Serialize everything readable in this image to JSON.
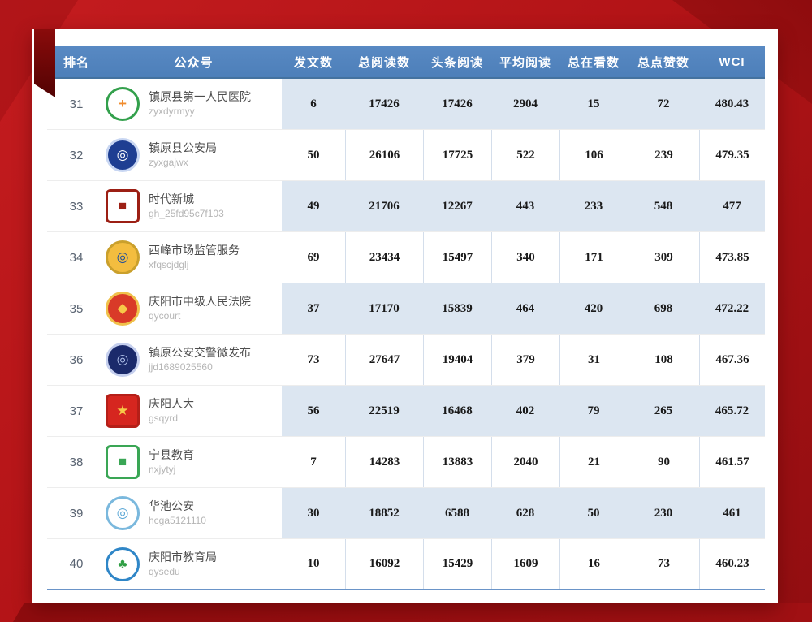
{
  "page": {
    "accent_red": "#b31417",
    "accent_dark_red": "#8e0c0e",
    "header_blue": "#4f81bd",
    "stripe_blue": "#dce6f1"
  },
  "table": {
    "columns": [
      "排名",
      "公众号",
      "发文数",
      "总阅读数",
      "头条阅读",
      "平均阅读",
      "总在看数",
      "总点赞数",
      "WCI"
    ],
    "rows": [
      {
        "rank": "31",
        "account_name": "镇原县第一人民医院",
        "account_id": "zyxdyrmyy",
        "posts": "6",
        "total_reads": "17426",
        "headline_reads": "17426",
        "avg_reads": "2904",
        "total_watching": "15",
        "total_likes": "72",
        "wci": "480.43",
        "logo": {
          "name": "hospital-logo",
          "shape": "circle",
          "bg": "#ffffff",
          "ring": "#33a04c",
          "glyph": "+",
          "glyph_color": "#f08c2e"
        }
      },
      {
        "rank": "32",
        "account_name": "镇原县公安局",
        "account_id": "zyxgajwx",
        "posts": "50",
        "total_reads": "26106",
        "headline_reads": "17725",
        "avg_reads": "522",
        "total_watching": "106",
        "total_likes": "239",
        "wci": "479.35",
        "logo": {
          "name": "police-badge-logo",
          "shape": "circle",
          "bg": "#1e3e92",
          "ring": "#c8d6f2",
          "glyph": "◎",
          "glyph_color": "#ffffff"
        }
      },
      {
        "rank": "33",
        "account_name": "时代新城",
        "account_id": "gh_25fd95c7f103",
        "posts": "49",
        "total_reads": "21706",
        "headline_reads": "12267",
        "avg_reads": "443",
        "total_watching": "233",
        "total_likes": "548",
        "wci": "477",
        "logo": {
          "name": "times-newtown-logo",
          "shape": "square",
          "bg": "#ffffff",
          "ring": "#9c1f14",
          "glyph": "■",
          "glyph_color": "#9c1f14"
        }
      },
      {
        "rank": "34",
        "account_name": "西峰市场监管服务",
        "account_id": "xfqscjdglj",
        "posts": "69",
        "total_reads": "23434",
        "headline_reads": "15497",
        "avg_reads": "340",
        "total_watching": "171",
        "total_likes": "309",
        "wci": "473.85",
        "logo": {
          "name": "market-regulation-badge-logo",
          "shape": "circle",
          "bg": "#f3bd3f",
          "ring": "#caa02c",
          "glyph": "◎",
          "glyph_color": "#1f4e9c"
        }
      },
      {
        "rank": "35",
        "account_name": "庆阳市中级人民法院",
        "account_id": "qycourt",
        "posts": "37",
        "total_reads": "17170",
        "headline_reads": "15839",
        "avg_reads": "464",
        "total_watching": "420",
        "total_likes": "698",
        "wci": "472.22",
        "logo": {
          "name": "court-emblem-logo",
          "shape": "circle",
          "bg": "#d93a28",
          "ring": "#f0c14b",
          "glyph": "◆",
          "glyph_color": "#f7c948"
        }
      },
      {
        "rank": "36",
        "account_name": "镇原公安交警微发布",
        "account_id": "jjd1689025560",
        "posts": "73",
        "total_reads": "27647",
        "headline_reads": "19404",
        "avg_reads": "379",
        "total_watching": "31",
        "total_likes": "108",
        "wci": "467.36",
        "logo": {
          "name": "traffic-police-logo",
          "shape": "circle",
          "bg": "#1b2a6b",
          "ring": "#c5cfee",
          "glyph": "◎",
          "glyph_color": "#aebfe8"
        }
      },
      {
        "rank": "37",
        "account_name": "庆阳人大",
        "account_id": "gsqyrd",
        "posts": "56",
        "total_reads": "22519",
        "headline_reads": "16468",
        "avg_reads": "402",
        "total_watching": "79",
        "total_likes": "265",
        "wci": "465.72",
        "logo": {
          "name": "peoples-congress-logo",
          "shape": "square",
          "bg": "#d6261f",
          "ring": "#b51f18",
          "glyph": "★",
          "glyph_color": "#f7c948"
        }
      },
      {
        "rank": "38",
        "account_name": "宁县教育",
        "account_id": "nxjytyj",
        "posts": "7",
        "total_reads": "14283",
        "headline_reads": "13883",
        "avg_reads": "2040",
        "total_watching": "21",
        "total_likes": "90",
        "wci": "461.57",
        "logo": {
          "name": "ningxian-education-logo",
          "shape": "square",
          "bg": "#ffffff",
          "ring": "#3aa655",
          "glyph": "■",
          "glyph_color": "#3aa655"
        }
      },
      {
        "rank": "39",
        "account_name": "华池公安",
        "account_id": "hcga5121110",
        "posts": "30",
        "total_reads": "18852",
        "headline_reads": "6588",
        "avg_reads": "628",
        "total_watching": "50",
        "total_likes": "230",
        "wci": "461",
        "logo": {
          "name": "huachi-police-shield-logo",
          "shape": "circle",
          "bg": "#ffffff",
          "ring": "#7ab8dd",
          "glyph": "◎",
          "glyph_color": "#5aa7d6"
        }
      },
      {
        "rank": "40",
        "account_name": "庆阳市教育局",
        "account_id": "qysedu",
        "posts": "10",
        "total_reads": "16092",
        "headline_reads": "15429",
        "avg_reads": "1609",
        "total_watching": "16",
        "total_likes": "73",
        "wci": "460.23",
        "logo": {
          "name": "qingyang-education-logo",
          "shape": "circle",
          "bg": "#ffffff",
          "ring": "#2f86c7",
          "glyph": "♣",
          "glyph_color": "#2f9e44"
        }
      }
    ]
  }
}
